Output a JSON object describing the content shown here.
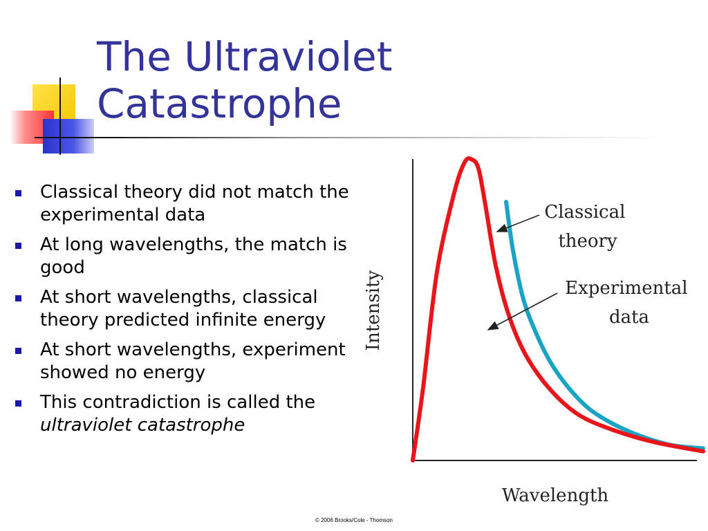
{
  "slide": {
    "title_lines": [
      "The Ultraviolet",
      "Catastrophe"
    ],
    "bullets": [
      {
        "text": "Classical theory did not match the experimental data"
      },
      {
        "text": "At long wavelengths, the match is good"
      },
      {
        "text": "At short wavelengths, classical theory predicted infinite energy"
      },
      {
        "text": "At short wavelengths, experiment showed no energy"
      },
      {
        "text": "This contradiction is called the ",
        "emphasis": "ultraviolet catastrophe"
      }
    ],
    "copyright": "© 2006 Brooks/Cole - Thomson",
    "colors": {
      "title": "#333399",
      "bullet": "#1a1aa6",
      "experimental": "#e8151b",
      "classical": "#19a3c4"
    }
  },
  "chart_data": {
    "type": "line",
    "title": "",
    "xlabel": "Wavelength",
    "ylabel": "Intensity",
    "axis_ticks": "none",
    "grid": false,
    "series": [
      {
        "name": "Experimental data",
        "color": "#e8151b",
        "x": [
          0.0,
          0.03,
          0.07,
          0.12,
          0.15,
          0.17,
          0.19,
          0.21,
          0.24,
          0.28,
          0.33,
          0.4,
          0.48,
          0.58,
          0.7,
          0.84
        ],
        "y": [
          0.0,
          0.24,
          0.62,
          0.88,
          0.98,
          0.99,
          0.96,
          0.84,
          0.64,
          0.47,
          0.34,
          0.23,
          0.15,
          0.1,
          0.06,
          0.03
        ]
      },
      {
        "name": "Classical theory",
        "color": "#19a3c4",
        "x": [
          0.27,
          0.29,
          0.32,
          0.36,
          0.4,
          0.45,
          0.51,
          0.58,
          0.66,
          0.75,
          0.84
        ],
        "y": [
          0.85,
          0.69,
          0.53,
          0.41,
          0.32,
          0.24,
          0.17,
          0.12,
          0.08,
          0.05,
          0.04
        ]
      }
    ],
    "annotations": [
      {
        "lines": [
          "Classical",
          "theory"
        ],
        "points_to": "Classical theory"
      },
      {
        "lines": [
          "Experimental",
          "data"
        ],
        "points_to": "Experimental data"
      }
    ],
    "copyright": "© 2006 Brooks/Cole - Thomson"
  }
}
